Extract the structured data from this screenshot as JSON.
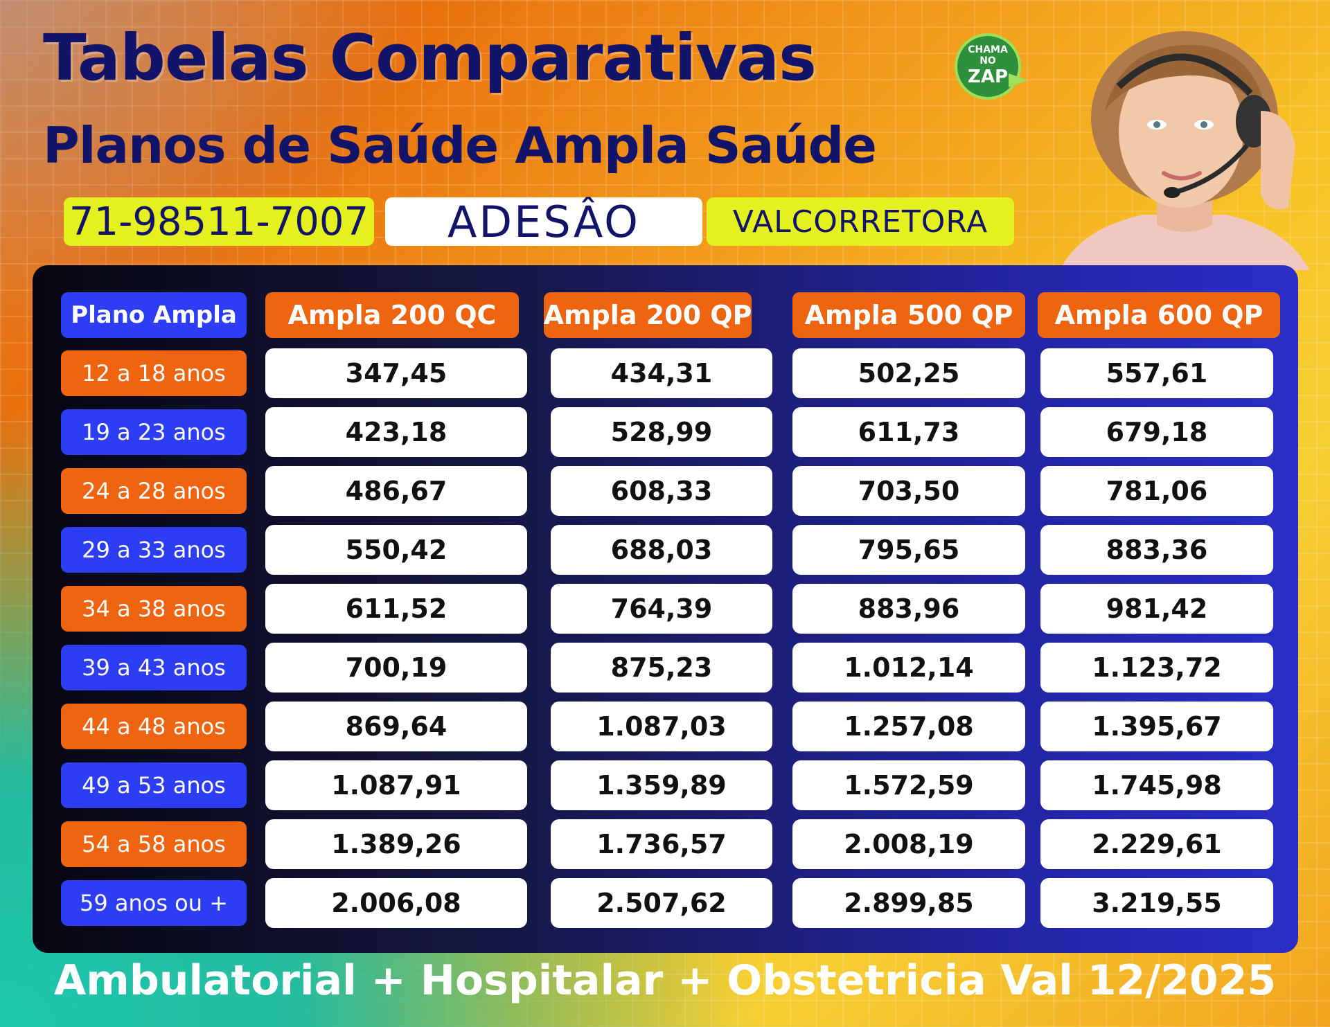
{
  "header": {
    "title": "Tabelas Comparativas",
    "subtitle": "Planos de Saúde Ampla Saúde",
    "badge_line1": "CHAMA",
    "badge_line2": "NO",
    "badge_line3": "ZAP",
    "badge_icon": "whatsapp-chat-bubble"
  },
  "info": {
    "phone": "71-98511-7007",
    "type": "ADESÂO",
    "broker": "VALCORRETORA"
  },
  "table": {
    "corner_header": "Plano Ampla",
    "columns": [
      "Ampla 200 QC",
      "Ampla 200 QP",
      "Ampla 500 QP",
      "Ampla 600 QP"
    ],
    "rows": [
      {
        "age": "12 a 18 anos",
        "values": [
          "347,45",
          "434,31",
          "502,25",
          "557,61"
        ]
      },
      {
        "age": "19 a 23 anos",
        "values": [
          "423,18",
          "528,99",
          "611,73",
          "679,18"
        ]
      },
      {
        "age": "24 a 28 anos",
        "values": [
          "486,67",
          "608,33",
          "703,50",
          "781,06"
        ]
      },
      {
        "age": "29 a 33 anos",
        "values": [
          "550,42",
          "688,03",
          "795,65",
          "883,36"
        ]
      },
      {
        "age": "34 a 38 anos",
        "values": [
          "611,52",
          "764,39",
          "883,96",
          "981,42"
        ]
      },
      {
        "age": "39 a 43 anos",
        "values": [
          "700,19",
          "875,23",
          "1.012,14",
          "1.123,72"
        ]
      },
      {
        "age": "44 a 48 anos",
        "values": [
          "869,64",
          "1.087,03",
          "1.257,08",
          "1.395,67"
        ]
      },
      {
        "age": "49 a 53 anos",
        "values": [
          "1.087,91",
          "1.359,89",
          "1.572,59",
          "1.745,98"
        ]
      },
      {
        "age": "54 a 58 anos",
        "values": [
          "1.389,26",
          "1.736,57",
          "2.008,19",
          "2.229,61"
        ]
      },
      {
        "age": "59 anos ou +",
        "values": [
          "2.006,08",
          "2.507,62",
          "2.899,85",
          "3.219,55"
        ]
      }
    ]
  },
  "footer": "Ambulatorial + Hospitalar + Obstetricia Val 12/2025",
  "colors": {
    "navy": "#12146a",
    "orange": "#ee6410",
    "blue": "#2d3df4",
    "yellow": "#e5f11e"
  }
}
